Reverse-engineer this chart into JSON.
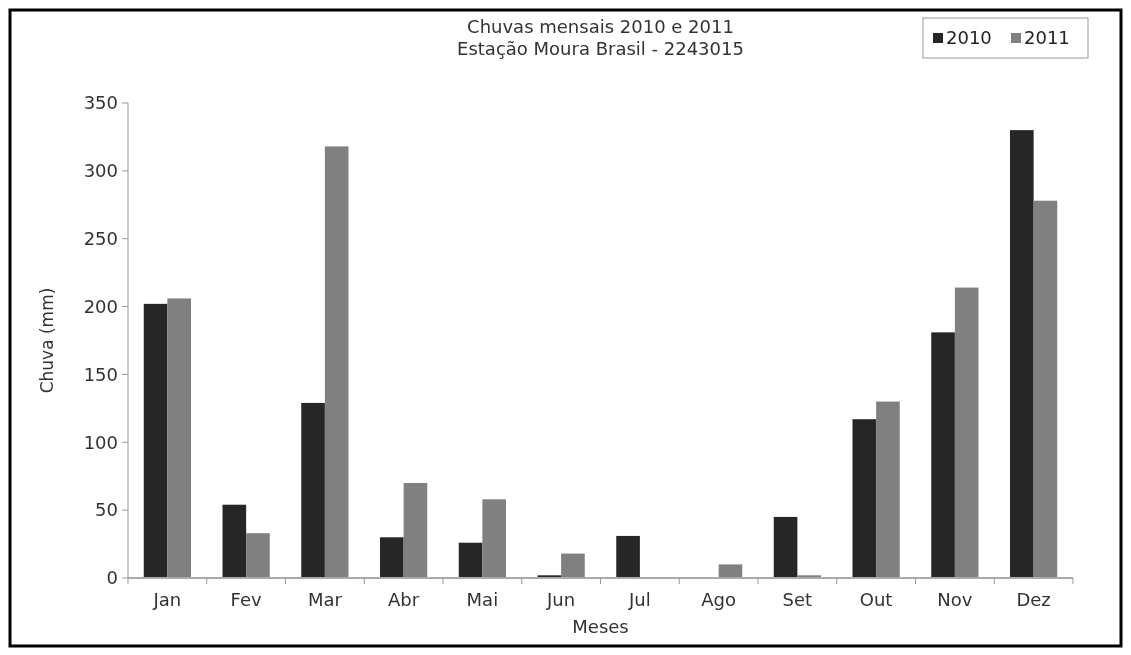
{
  "chart_data": {
    "type": "bar",
    "title": "Chuvas mensais 2010 e 2011",
    "subtitle": "Estação Moura Brasil - 2243015",
    "xlabel": "Meses",
    "ylabel": "Chuva (mm)",
    "categories": [
      "Jan",
      "Fev",
      "Mar",
      "Abr",
      "Mai",
      "Jun",
      "Jul",
      "Ago",
      "Set",
      "Out",
      "Nov",
      "Dez"
    ],
    "series": [
      {
        "name": "2010",
        "color": "#262626",
        "values": [
          202,
          54,
          129,
          30,
          26,
          2,
          31,
          0,
          45,
          117,
          181,
          330
        ]
      },
      {
        "name": "2011",
        "color": "#808080",
        "values": [
          206,
          33,
          318,
          70,
          58,
          18,
          0,
          10,
          2,
          130,
          214,
          278
        ]
      }
    ],
    "ylim": [
      0,
      350
    ],
    "yticks": [
      0,
      50,
      100,
      150,
      200,
      250,
      300,
      350
    ],
    "grid": false,
    "legend": "top right"
  }
}
